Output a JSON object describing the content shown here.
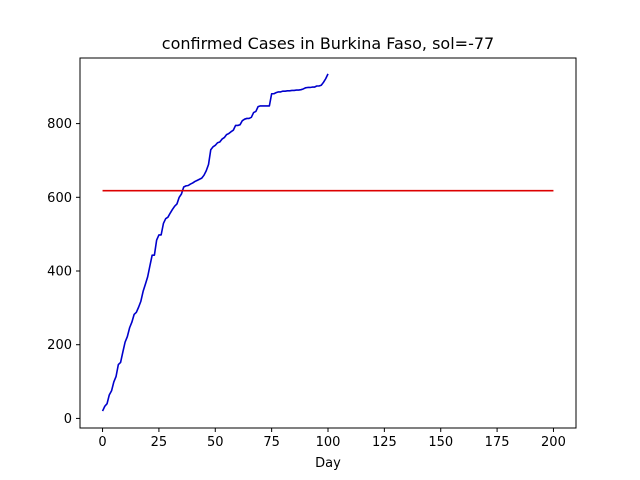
{
  "chart_data": {
    "type": "line",
    "title": "confirmed Cases in Burkina Faso, sol=-77",
    "xlabel": "Day",
    "ylabel": "",
    "xlim": [
      -10,
      210
    ],
    "ylim": [
      -26,
      978
    ],
    "x_ticks": [
      0,
      25,
      50,
      75,
      100,
      125,
      150,
      175,
      200
    ],
    "y_ticks": [
      0,
      200,
      400,
      600,
      800
    ],
    "grid": false,
    "legend": "none",
    "series": [
      {
        "color": "#0000cc",
        "x": [
          0,
          1,
          2,
          3,
          4,
          5,
          6,
          7,
          8,
          9,
          10,
          11,
          12,
          13,
          14,
          15,
          16,
          17,
          18,
          19,
          20,
          21,
          22,
          23,
          24,
          25,
          26,
          27,
          28,
          29,
          30,
          31,
          32,
          33,
          34,
          35,
          36,
          37,
          38,
          39,
          40,
          41,
          42,
          43,
          44,
          45,
          46,
          47,
          48,
          49,
          50,
          51,
          52,
          53,
          54,
          55,
          56,
          57,
          58,
          59,
          60,
          61,
          62,
          63,
          64,
          65,
          66,
          67,
          68,
          69,
          70,
          71,
          72,
          73,
          74,
          75,
          76,
          77,
          78,
          79,
          80,
          81,
          82,
          83,
          84,
          85,
          86,
          87,
          88,
          89,
          90,
          91,
          92,
          93,
          94,
          95,
          96,
          97,
          98,
          99,
          100
        ],
        "y": [
          20,
          33,
          40,
          64,
          75,
          99,
          114,
          146,
          152,
          180,
          207,
          222,
          246,
          261,
          282,
          288,
          302,
          318,
          345,
          364,
          384,
          414,
          443,
          443,
          484,
          498,
          498,
          529,
          542,
          546,
          557,
          567,
          576,
          582,
          600,
          609,
          628,
          631,
          632,
          636,
          639,
          643,
          646,
          649,
          652,
          660,
          672,
          689,
          729,
          737,
          741,
          748,
          750,
          758,
          762,
          770,
          773,
          778,
          782,
          795,
          795,
          797,
          808,
          812,
          814,
          814,
          817,
          830,
          833,
          846,
          848,
          848,
          848,
          848,
          848,
          881,
          881,
          884,
          886,
          886,
          888,
          888,
          889,
          889,
          890,
          890,
          891,
          891,
          892,
          894,
          897,
          898,
          898,
          899,
          899,
          902,
          902,
          904,
          912,
          922,
          935
        ]
      },
      {
        "color": "#dd0000",
        "x": [
          0,
          200
        ],
        "y": [
          618,
          618
        ]
      }
    ]
  }
}
